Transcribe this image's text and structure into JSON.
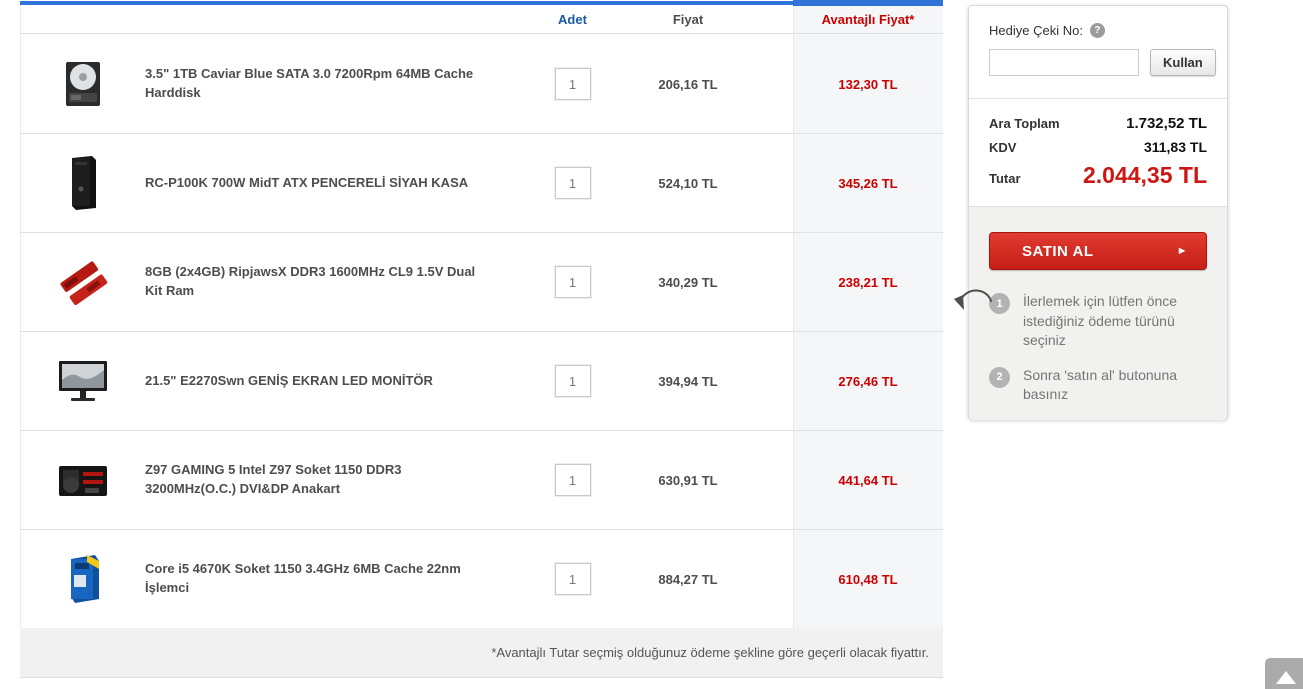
{
  "colors": {
    "accent_blue": "#3174d9",
    "header_text_blue": "#1b5aa5",
    "price_red": "#cc0000",
    "total_red": "#cc1714",
    "buy_button_red": "#c41e16",
    "panel_gray": "#f1f1f0"
  },
  "table": {
    "headers": {
      "adet": "Adet",
      "fiyat": "Fiyat",
      "avantajli": "Avantajlı Fiyat*"
    },
    "rows": [
      {
        "image": "hdd",
        "name": "3.5\" 1TB Caviar Blue SATA 3.0 7200Rpm 64MB Cache Harddisk",
        "qty": "1",
        "price": "206,16 TL",
        "adv_price": "132,30 TL"
      },
      {
        "image": "case",
        "name": "RC-P100K 700W MidT ATX PENCERELİ SİYAH KASA",
        "qty": "1",
        "price": "524,10 TL",
        "adv_price": "345,26 TL"
      },
      {
        "image": "ram",
        "name": "8GB (2x4GB) RipjawsX DDR3 1600MHz CL9 1.5V Dual Kit Ram",
        "qty": "1",
        "price": "340,29 TL",
        "adv_price": "238,21 TL"
      },
      {
        "image": "monitor",
        "name": "21.5\" E2270Swn GENİŞ EKRAN LED MONİTÖR",
        "qty": "1",
        "price": "394,94 TL",
        "adv_price": "276,46 TL"
      },
      {
        "image": "motherboard",
        "name": "Z97 GAMING 5 Intel Z97 Soket 1150 DDR3 3200MHz(O.C.) DVI&DP Anakart",
        "qty": "1",
        "price": "630,91 TL",
        "adv_price": "441,64 TL"
      },
      {
        "image": "cpu",
        "name": "Core i5 4670K Soket 1150 3.4GHz 6MB Cache 22nm İşlemci",
        "qty": "1",
        "price": "884,27 TL",
        "adv_price": "610,48 TL"
      }
    ],
    "footnote": "*Avantajlı Tutar seçmiş olduğunuz ödeme şekline göre geçerli olacak fiyattır."
  },
  "sidebar": {
    "gift_label": "Hediye Çeki No:",
    "gift_input_value": "",
    "help_icon_glyph": "?",
    "use_button": "Kullan",
    "summary": [
      {
        "label": "Ara Toplam",
        "value": "1.732,52 TL"
      },
      {
        "label": "KDV",
        "value": "311,83 TL"
      },
      {
        "label": "Tutar",
        "value": "2.044,35 TL"
      }
    ],
    "buy_button": "SATIN AL",
    "buy_button_arrow": "►",
    "steps": [
      {
        "num": "1",
        "text": "İlerlemek için lütfen önce istediğiniz ödeme türünü seçiniz"
      },
      {
        "num": "2",
        "text": "Sonra 'satın al' butonuna basınız"
      }
    ]
  },
  "scroll_top_glyph": "▲"
}
